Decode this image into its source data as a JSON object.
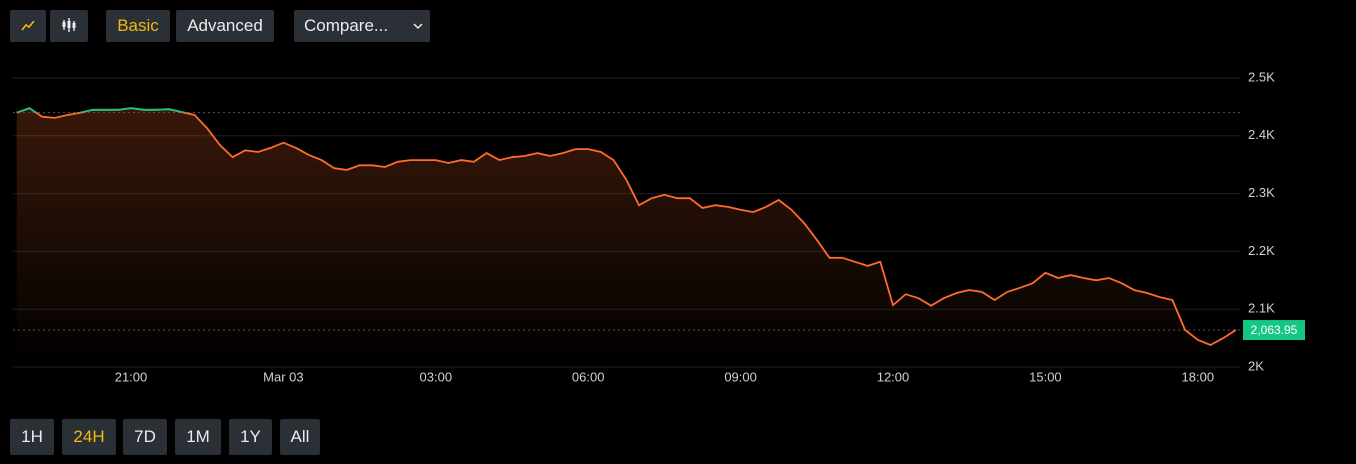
{
  "toolbar": {
    "modes": [
      "Basic",
      "Advanced"
    ],
    "active_mode": 0,
    "compare": "Compare...",
    "ranges": [
      "1H",
      "24H",
      "7D",
      "1M",
      "1Y",
      "All"
    ],
    "active_range": 1
  },
  "chart_data": {
    "type": "line",
    "categories": [
      null,
      null,
      null,
      null,
      null,
      null,
      null,
      null,
      null,
      "21:00",
      null,
      null,
      null,
      null,
      null,
      null,
      null,
      null,
      null,
      null,
      null,
      "Mar 03",
      null,
      null,
      null,
      null,
      null,
      null,
      null,
      null,
      null,
      null,
      null,
      "03:00",
      null,
      null,
      null,
      null,
      null,
      null,
      null,
      null,
      null,
      null,
      null,
      "06:00",
      null,
      null,
      null,
      null,
      null,
      null,
      null,
      null,
      null,
      null,
      null,
      "09:00",
      null,
      null,
      null,
      null,
      null,
      null,
      null,
      null,
      null,
      null,
      null,
      "12:00",
      null,
      null,
      null,
      null,
      null,
      null,
      null,
      null,
      null,
      null,
      null,
      "15:00",
      null,
      null,
      null,
      null,
      null,
      null,
      null,
      null,
      null,
      null,
      null,
      "18:00",
      null,
      null,
      null
    ],
    "values": [
      2440,
      2448,
      2433,
      2431,
      2436,
      2440,
      2445,
      2445,
      2445,
      2448,
      2445,
      2445,
      2446,
      2441,
      2436,
      2413,
      2384,
      2363,
      2375,
      2372,
      2379,
      2388,
      2379,
      2367,
      2358,
      2344,
      2341,
      2349,
      2349,
      2346,
      2355,
      2358,
      2358,
      2358,
      2353,
      2358,
      2355,
      2370,
      2358,
      2363,
      2365,
      2370,
      2365,
      2370,
      2377,
      2377,
      2372,
      2358,
      2324,
      2280,
      2292,
      2298,
      2292,
      2292,
      2275,
      2280,
      2277,
      2272,
      2268,
      2277,
      2289,
      2272,
      2249,
      2220,
      2189,
      2189,
      2182,
      2175,
      2182,
      2107,
      2126,
      2119,
      2106,
      2119,
      2128,
      2133,
      2130,
      2116,
      2130,
      2137,
      2145,
      2163,
      2154,
      2159,
      2154,
      2150,
      2154,
      2145,
      2133,
      2128,
      2121,
      2116,
      2064,
      2047,
      2038,
      2050,
      2063.95
    ],
    "reference": 2440,
    "up_color": "#16c784",
    "down_color": "#ff6b2b",
    "last_value": 2063.95,
    "last_label": "2,063.95",
    "ylim": [
      2000,
      2500
    ],
    "yticks": [
      {
        "value": 2000,
        "label": "2K"
      },
      {
        "value": 2100,
        "label": "2.1K"
      },
      {
        "value": 2200,
        "label": "2.2K"
      },
      {
        "value": 2300,
        "label": "2.3K"
      },
      {
        "value": 2400,
        "label": "2.4K"
      },
      {
        "value": 2500,
        "label": "2.5K"
      }
    ],
    "grid": true
  }
}
